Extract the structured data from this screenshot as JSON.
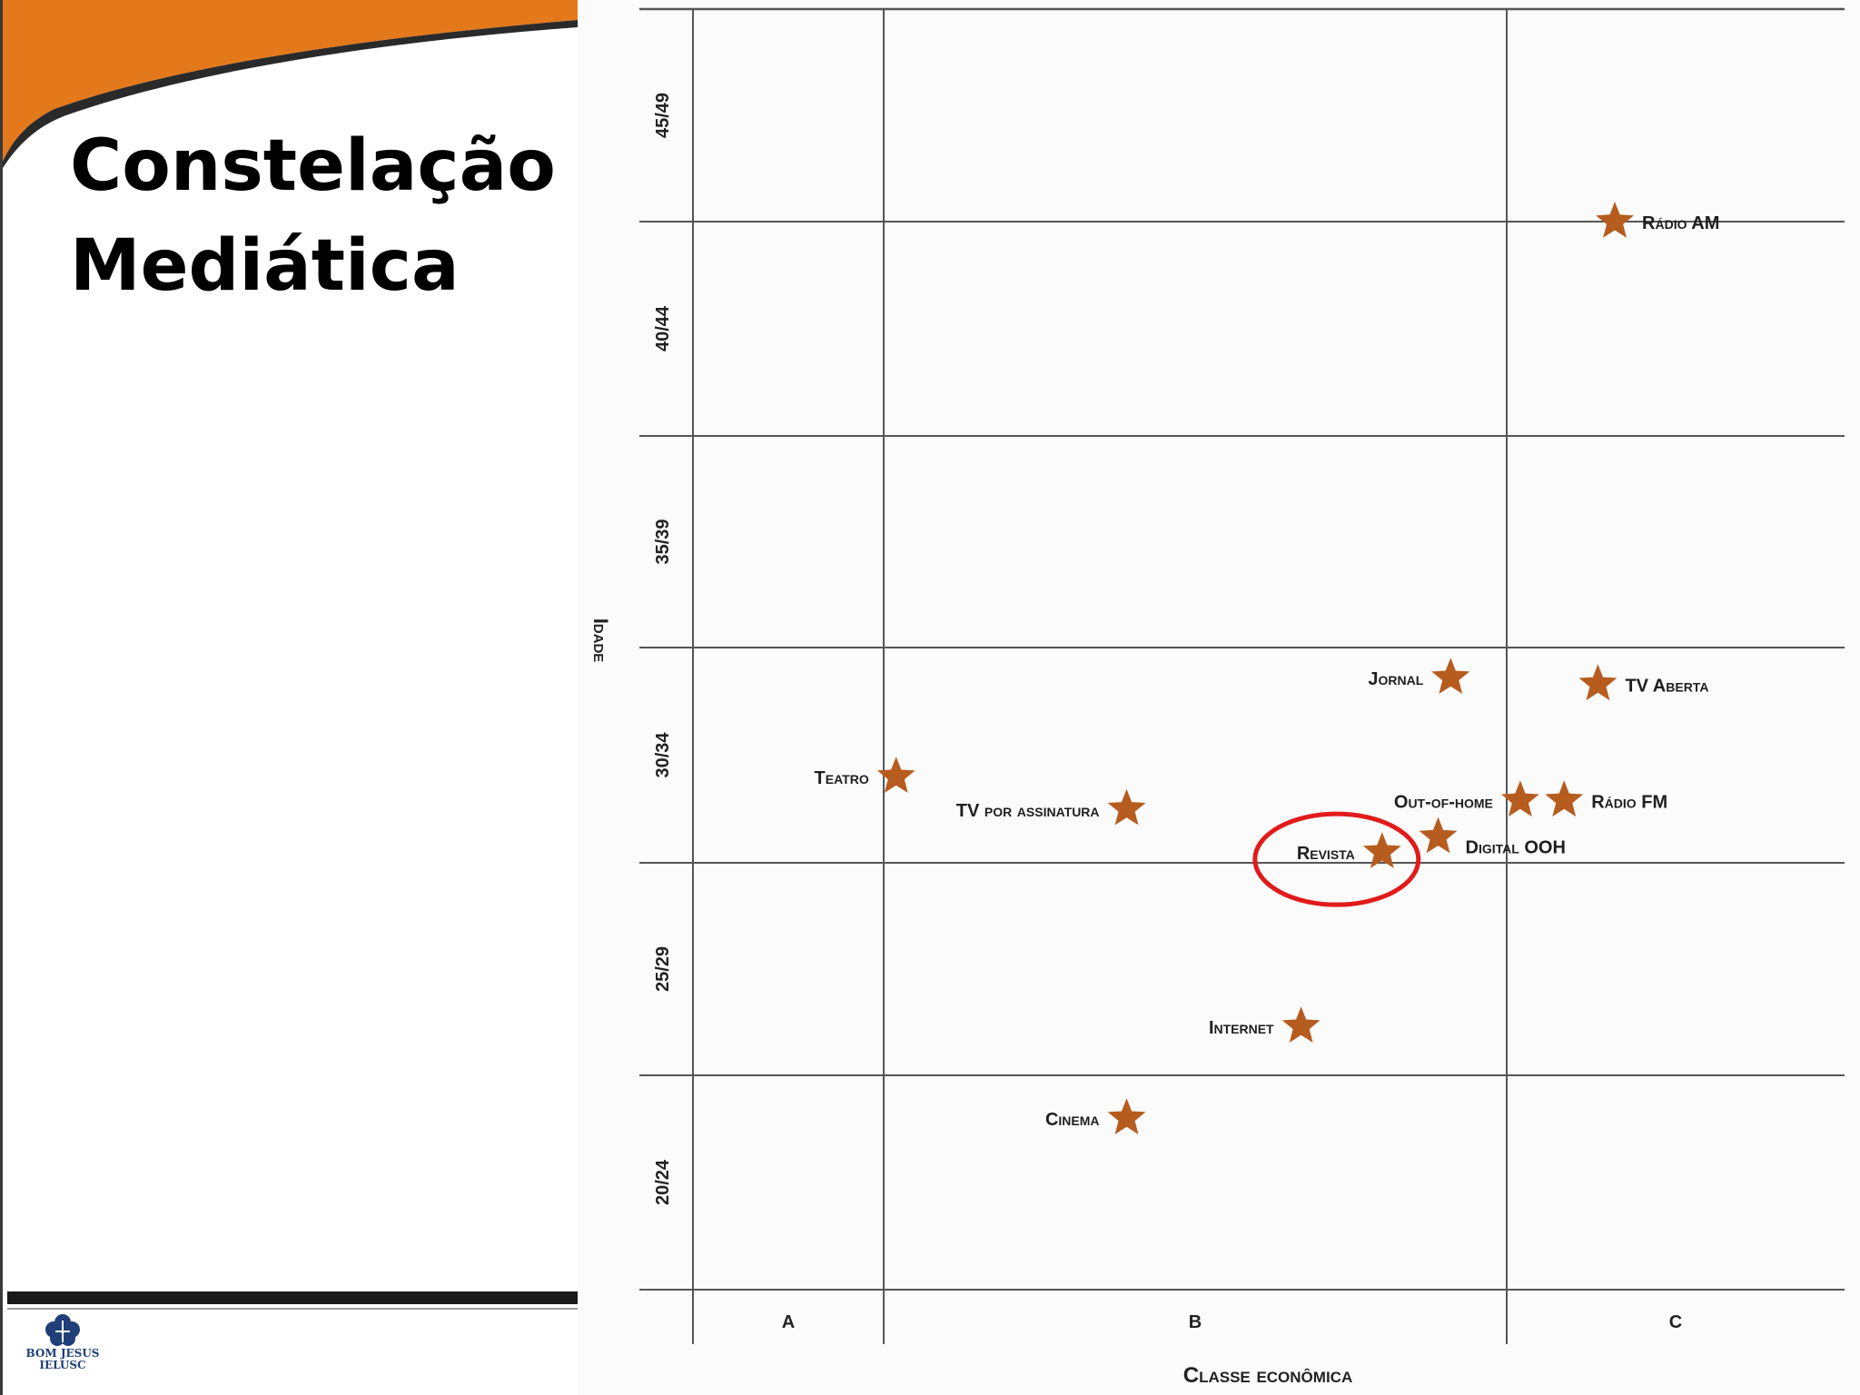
{
  "slide": {
    "title_line1": "Constelação",
    "title_line2": "Mediática",
    "logo_line1": "BOM JESUS",
    "logo_line2": "IELUSC"
  },
  "colors": {
    "header_orange": "#e4791c",
    "header_dark": "#2a2a2a",
    "star": "#b65c1f",
    "highlight_circle": "#e11b1b",
    "grid": "#555555",
    "logo_blue": "#1f3f78"
  },
  "chart_data": {
    "type": "scatter",
    "xlabel": "Classe econômica",
    "ylabel": "Idade",
    "x_categories": [
      "A",
      "B",
      "C"
    ],
    "y_categories": [
      "20/24",
      "25/29",
      "30/34",
      "35/39",
      "40/44",
      "45/49"
    ],
    "xlim": [
      0,
      3
    ],
    "ylim": [
      0,
      6
    ],
    "grid": true,
    "marker": "star",
    "points": [
      {
        "label": "Rádio AM",
        "x": 2.32,
        "y": 5.0
      },
      {
        "label": "Jornal",
        "x": 1.91,
        "y": 2.86
      },
      {
        "label": "TV Aberta",
        "x": 2.27,
        "y": 2.83
      },
      {
        "label": "Teatro",
        "x": 1.02,
        "y": 2.4
      },
      {
        "label": "TV por assinatura",
        "x": 1.39,
        "y": 2.25
      },
      {
        "label": "Out-of-home",
        "x": 2.04,
        "y": 2.29
      },
      {
        "label": "Rádio FM",
        "x": 2.17,
        "y": 2.29
      },
      {
        "label": "Digital OOH",
        "x": 1.89,
        "y": 2.12
      },
      {
        "label": "Revista",
        "x": 1.8,
        "y": 2.05
      },
      {
        "label": "Internet",
        "x": 1.67,
        "y": 1.23
      },
      {
        "label": "Cinema",
        "x": 1.39,
        "y": 0.8
      }
    ],
    "highlighted": "Revista"
  }
}
